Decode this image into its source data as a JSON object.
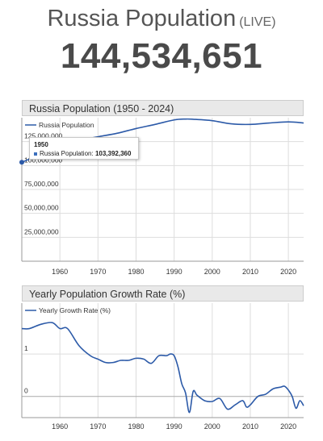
{
  "header": {
    "title": "Russia Population",
    "live_label": "(LIVE)",
    "counter": "144,534,651"
  },
  "tooltip": {
    "year": "1950",
    "label": "Russia Population:",
    "value": "103,392,360"
  },
  "colors": {
    "line": "#2c5aa8",
    "grid": "#dddddd",
    "axis": "#999999",
    "header_bg": "#e9e9e9"
  },
  "chart_data": [
    {
      "type": "line",
      "title": "Russia Population (1950 - 2024)",
      "legend": "top-left",
      "grid": true,
      "series": [
        {
          "name": "Russia Population",
          "x": [
            1950,
            1955,
            1960,
            1965,
            1970,
            1975,
            1980,
            1985,
            1990,
            1993,
            1995,
            2000,
            2005,
            2010,
            2015,
            2020,
            2024
          ],
          "y": [
            103392360,
            111800000,
            119800000,
            126300000,
            130100000,
            133700000,
            138700000,
            143000000,
            147700000,
            148600000,
            148400000,
            146900000,
            143600000,
            143000000,
            144500000,
            145600000,
            144500000
          ]
        }
      ],
      "y_ticks": [
        "25,000,000",
        "50,000,000",
        "75,000,000",
        "100,000,000",
        "125,000,000"
      ],
      "y_tick_values": [
        25000000,
        50000000,
        75000000,
        100000000,
        125000000
      ],
      "x_ticks": [
        "1960",
        "1970",
        "1980",
        "1990",
        "2000",
        "2010",
        "2020"
      ],
      "x_tick_values": [
        1960,
        1970,
        1980,
        1990,
        2000,
        2010,
        2020
      ],
      "xlim": [
        1950,
        2024
      ],
      "ylim": [
        0,
        150000000
      ]
    },
    {
      "type": "line",
      "title": "Yearly Population Growth Rate (%)",
      "legend": "top-left",
      "grid": true,
      "series": [
        {
          "name": "Yearly Growth Rate (%)",
          "x": [
            1950,
            1952,
            1955,
            1958,
            1960,
            1962,
            1965,
            1968,
            1970,
            1972,
            1974,
            1976,
            1978,
            1980,
            1982,
            1984,
            1986,
            1988,
            1989,
            1990,
            1991,
            1992,
            1993,
            1994,
            1995,
            1996,
            1998,
            2000,
            2002,
            2004,
            2006,
            2008,
            2009,
            2010,
            2012,
            2014,
            2016,
            2018,
            2019,
            2020,
            2021,
            2022,
            2023,
            2024
          ],
          "y": [
            1.6,
            1.6,
            1.7,
            1.74,
            1.6,
            1.6,
            1.2,
            0.96,
            0.88,
            0.8,
            0.8,
            0.85,
            0.85,
            0.9,
            0.88,
            0.78,
            0.96,
            0.96,
            1.0,
            0.96,
            0.7,
            0.3,
            0.08,
            -0.38,
            0.12,
            0.03,
            -0.1,
            -0.12,
            -0.05,
            -0.3,
            -0.2,
            -0.1,
            -0.25,
            -0.2,
            0.0,
            0.05,
            0.18,
            0.22,
            0.24,
            0.15,
            0.0,
            -0.28,
            -0.1,
            -0.22
          ]
        }
      ],
      "y_ticks": [
        "0",
        "1"
      ],
      "y_tick_values": [
        0,
        1
      ],
      "x_ticks": [
        "1960",
        "1970",
        "1980",
        "1990",
        "2000",
        "2010",
        "2020"
      ],
      "x_tick_values": [
        1960,
        1970,
        1980,
        1990,
        2000,
        2010,
        2020
      ],
      "xlim": [
        1950,
        2024
      ],
      "ylim": [
        -0.5,
        2.2
      ]
    }
  ]
}
